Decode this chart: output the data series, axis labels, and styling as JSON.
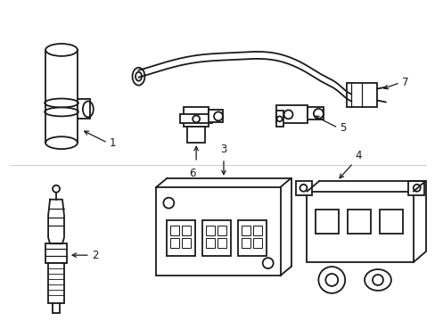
{
  "background_color": "#ffffff",
  "line_color": "#1a1a1a",
  "figsize": [
    4.89,
    3.6
  ],
  "dpi": 100,
  "label_fontsize": 8.5
}
